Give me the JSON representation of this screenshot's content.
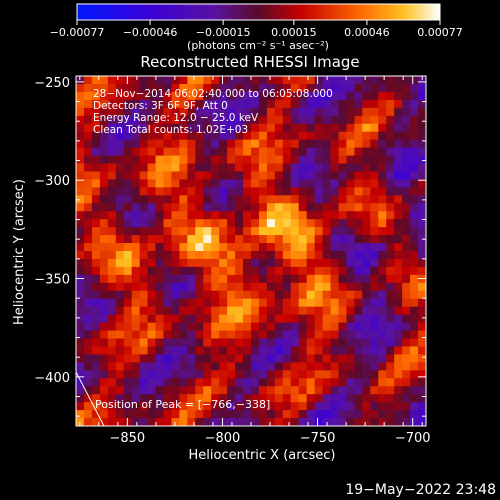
{
  "chart_data": {
    "type": "heatmap",
    "title": "Reconstructed RHESSI Image",
    "xlabel": "Heliocentric X (arcsec)",
    "ylabel": "Heliocentric Y (arcsec)",
    "xlim": [
      -877,
      -693
    ],
    "ylim": [
      -425,
      -247
    ],
    "x_ticks": [
      -850,
      -800,
      -750,
      -700
    ],
    "x_tick_labels": [
      "−850",
      "−800",
      "−750",
      "−700"
    ],
    "y_ticks": [
      -400,
      -350,
      -300,
      -250
    ],
    "y_tick_labels": [
      "−400",
      "−350",
      "−300",
      "−250"
    ],
    "colorbar": {
      "range": [
        -0.00077,
        0.00077
      ],
      "ticks": [
        -0.00077,
        -0.00046,
        -0.00015,
        0.00015,
        0.00046,
        0.00077
      ],
      "tick_labels": [
        "−0.00077",
        "−0.00046",
        "−0.00015",
        "0.00015",
        "0.00046",
        "0.00077"
      ],
      "units_label": "(photons cm⁻² s⁻¹ asec⁻²)"
    },
    "annotations": [
      "28−Nov−2014 06:02:40.000 to 06:05:08.000",
      "Detectors: 3F 6F 9F, Att 0",
      "Energy Range: 12.0 − 25.0 keV",
      "Clean     Total counts: 1.02E+03"
    ],
    "peak_label": "Position of Peak = [−766,−338]",
    "peak": [
      -766,
      -338
    ]
  },
  "footer": {
    "timestamp": "19−May−2022 23:48"
  }
}
